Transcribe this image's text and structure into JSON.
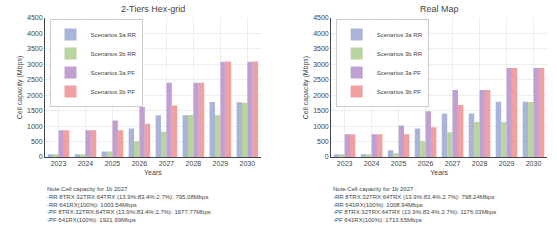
{
  "chart_data": [
    {
      "type": "bar",
      "title": "2-Tiers Hex-grid",
      "categories": [
        "2023",
        "2024",
        "2025",
        "2026",
        "2027",
        "2028",
        "2029",
        "2030"
      ],
      "series": [
        {
          "name": "Scenarios 3a RR",
          "color": "#aab4d8",
          "values": [
            90,
            90,
            180,
            920,
            1350,
            1350,
            1780,
            1770
          ]
        },
        {
          "name": "Scenarios 3b RR",
          "color": "#b8d4a0",
          "values": [
            90,
            90,
            180,
            510,
            820,
            1360,
            1360,
            1760
          ]
        },
        {
          "name": "Scenarios 3a PF",
          "color": "#c0a0d0",
          "values": [
            870,
            870,
            1180,
            1620,
            2400,
            2400,
            3080,
            3080
          ]
        },
        {
          "name": "Scenarios 3b PF",
          "color": "#f0a0a0",
          "values": [
            870,
            870,
            870,
            1080,
            1670,
            2400,
            3090,
            3090
          ]
        }
      ],
      "xlabel": "Years",
      "ylabel": "Cell capacity (Mbps)",
      "ylim": [
        0,
        4500
      ],
      "yticks": [
        0,
        500,
        1000,
        1500,
        2000,
        2500,
        3000,
        3500,
        4000,
        4500
      ],
      "grid": true,
      "legend": "upper left",
      "annotations": [
        "Note:Cell capacity for 1b 2027\n-RR 8TRX:32TRX:64TRX (13.9%:83.4%:2.7%): 795.08Mbps\n-RR 641RX(100%): 1003.54Mbps\n-PF 8TRX:32TRX:64TRX (13.9%:83.4%:2.7%): 1677.77Mbps\n-PF 641RX(100%): 1921.99Mbps"
      ]
    },
    {
      "type": "bar",
      "title": "Real Map",
      "categories": [
        "2023",
        "2024",
        "2025",
        "2026",
        "2027",
        "2028",
        "2029",
        "2030"
      ],
      "series": [
        {
          "name": "Scenarios 3a RR",
          "color": "#aab4d8",
          "values": [
            90,
            90,
            220,
            920,
            1410,
            1410,
            1790,
            1790
          ]
        },
        {
          "name": "Scenarios 3b RR",
          "color": "#b8d4a0",
          "values": [
            90,
            90,
            120,
            520,
            800,
            1130,
            1130,
            1780
          ]
        },
        {
          "name": "Scenarios 3a PF",
          "color": "#c0a0d0",
          "values": [
            740,
            740,
            1020,
            1480,
            2170,
            2170,
            2880,
            2880
          ]
        },
        {
          "name": "Scenarios 3b PF",
          "color": "#f0a0a0",
          "values": [
            740,
            740,
            740,
            960,
            1680,
            2170,
            2880,
            2880
          ]
        }
      ],
      "xlabel": "Years",
      "ylabel": "Cell capacity (Mbps)",
      "ylim": [
        0,
        4500
      ],
      "yticks": [
        0,
        500,
        1000,
        1500,
        2000,
        2500,
        3000,
        3500,
        4000,
        4500
      ],
      "grid": true,
      "legend": "upper left",
      "annotations": [
        "Note:Cell capacity for 1b 2027\n-RR 8TRX:32TRX:64TRX (13.9%:83.4%:2.7%): 798.24Mbps\n-RR 641RX(100%): 1008.94Mbps\n-PF 8TRX:32TRX:64TRX (13.9%:83.4%:2.7%): 1176.03Mbps\n-PF 641RX(100%): 1713.65Mbps"
      ]
    }
  ]
}
